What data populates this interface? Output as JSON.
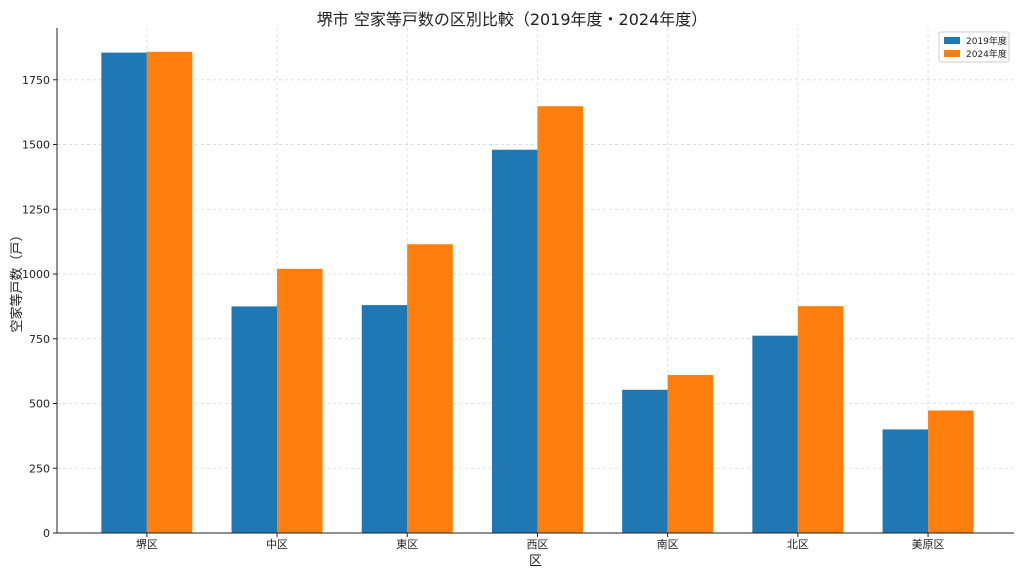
{
  "chart_data": {
    "type": "bar",
    "title": "堺市 空家等戸数の区別比較（2019年度・2024年度）",
    "xlabel": "区",
    "ylabel": "空家等戸数（戸）",
    "categories": [
      "堺区",
      "中区",
      "東区",
      "西区",
      "南区",
      "北区",
      "美原区"
    ],
    "series": [
      {
        "name": "2019年度",
        "color": "#1f77b4",
        "values": [
          1855,
          875,
          880,
          1480,
          553,
          762,
          400
        ]
      },
      {
        "name": "2024年度",
        "color": "#ff7f0e",
        "values": [
          1858,
          1020,
          1115,
          1648,
          610,
          876,
          473
        ]
      }
    ],
    "ylim": [
      0,
      1950
    ],
    "yticks": [
      0,
      250,
      500,
      750,
      1000,
      1250,
      1500,
      1750
    ],
    "grid": true,
    "legend_position": "top-right"
  }
}
